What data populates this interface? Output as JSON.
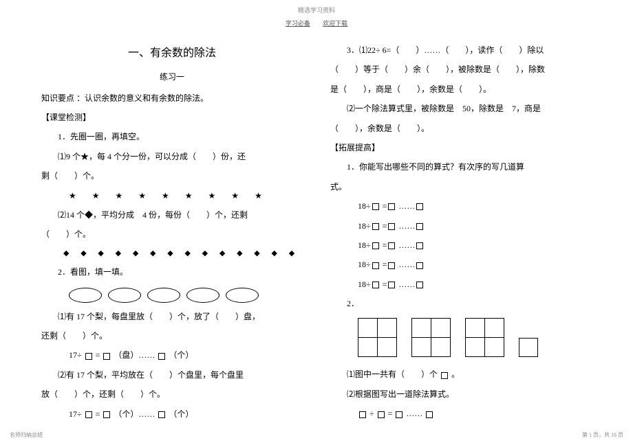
{
  "header": {
    "top": "精选学习资料",
    "sub_left": "学习必备",
    "sub_right": "欢迎下载"
  },
  "left": {
    "title": "一、有余数的除法",
    "subtitle": "练习一",
    "knowledge": "知识要点 ：认识余数的意义和有余数的除法。",
    "section_check": "【课堂检测】",
    "q1": "1．先圈一圈，再填空。",
    "q1_1a": "⑴9 个★，每  4 个分一份，可以分成（　　）份，还",
    "q1_1b": "剩（　　）个。",
    "stars": "★ ★ ★ ★ ★ ★ ★ ★ ★",
    "q1_2a": "⑵14 个◆，平均分成　4 份，每份（　　）个，还剩",
    "q1_2b": "（　　）个。",
    "diamonds": "◆ ◆ ◆ ◆ ◆ ◆ ◆ ◆ ◆ ◆ ◆ ◆ ◆ ◆",
    "q2": "2．看图，填一填。",
    "q2_1a": "⑴有  17 个梨，每盘里放（　　）个，放了（　　）盘，",
    "q2_1b": "还剩（　　）个。",
    "eq1_pre": "17÷",
    "eq1_mid1": "=",
    "eq1_txt1": "（盘）……",
    "eq1_txt2": "（个）",
    "q2_2a": "⑵有  17 个梨，平均放在（　　）个盘里，每个盘里",
    "q2_2b": "放（　　）个，还剩（　　）个。",
    "eq2_pre": "17÷",
    "eq2_mid1": "=",
    "eq2_txt1": "（个）……",
    "eq2_txt2": "（个）"
  },
  "right": {
    "q3a": "3．⑴22÷ 6=（　　）……（　　），读作（　　）除以",
    "q3b": "（　　）等于（　　）余（　　），被除数是（　　），除数",
    "q3c": "是（　　），商是（　　），余数是（　　）。",
    "q3_2a": "⑵一个除法算式里，被除数是　50，除数是　7，商是",
    "q3_2b": "（　　），余数是（　　）。",
    "section_ext": "【拓展提高】",
    "ext_q1a": "1．你能写出哪些不同的算式？有次序的写几道算",
    "ext_q1b": "式。",
    "eq18_pre": "18÷",
    "eq18_mid": "=",
    "eq18_dots": "……",
    "ext_q2": "2．",
    "q2_1": "⑴图中一共有（　　）个",
    "q2_1_end": "。",
    "q2_2": "⑵根据图写出一道除法算式。",
    "fin_div": "÷",
    "fin_eq": "=",
    "fin_dots": "……"
  },
  "footer": {
    "left": "名师归纳总结",
    "right": "第 1 页，共 18 页"
  }
}
